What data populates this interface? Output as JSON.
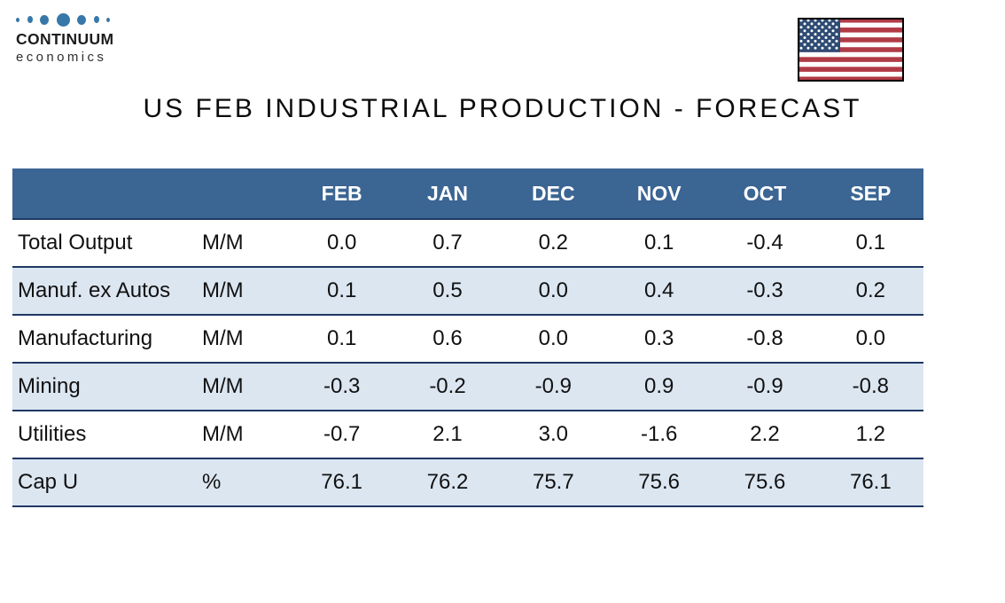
{
  "logo": {
    "line1": "CONTINUUM",
    "line2": "economics",
    "dot_color": "#3878A8"
  },
  "flag": {
    "name": "united-states-flag",
    "stripe_red": "#B03A45",
    "canton_blue": "#2E4B74",
    "star_white": "#FFFFFF",
    "border_black": "#000000"
  },
  "title": "US FEB INDUSTRIAL PRODUCTION - FORECAST",
  "table": {
    "header_bg": "#3B6593",
    "alt_row_bg": "#DCE6F1",
    "divider_color": "#1F3864",
    "columns": [
      "",
      "",
      "FEB",
      "JAN",
      "DEC",
      "NOV",
      "OCT",
      "SEP"
    ],
    "rows": [
      {
        "label": "Total Output",
        "unit": "M/M",
        "values": [
          "0.0",
          "0.7",
          "0.2",
          "0.1",
          "-0.4",
          "0.1"
        ]
      },
      {
        "label": "Manuf. ex Autos",
        "unit": "M/M",
        "values": [
          "0.1",
          "0.5",
          "0.0",
          "0.4",
          "-0.3",
          "0.2"
        ]
      },
      {
        "label": "Manufacturing",
        "unit": "M/M",
        "values": [
          "0.1",
          "0.6",
          "0.0",
          "0.3",
          "-0.8",
          "0.0"
        ]
      },
      {
        "label": "Mining",
        "unit": "M/M",
        "values": [
          "-0.3",
          "-0.2",
          "-0.9",
          "0.9",
          "-0.9",
          "-0.8"
        ]
      },
      {
        "label": "Utilities",
        "unit": "M/M",
        "values": [
          "-0.7",
          "2.1",
          "3.0",
          "-1.6",
          "2.2",
          "1.2"
        ]
      },
      {
        "label": "Cap U",
        "unit": "%",
        "values": [
          "76.1",
          "76.2",
          "75.7",
          "75.6",
          "75.6",
          "76.1"
        ]
      }
    ]
  },
  "chart_data": {
    "type": "table",
    "title": "US FEB INDUSTRIAL PRODUCTION - FORECAST",
    "categories": [
      "FEB",
      "JAN",
      "DEC",
      "NOV",
      "OCT",
      "SEP"
    ],
    "series": [
      {
        "name": "Total Output",
        "unit": "M/M",
        "values": [
          0.0,
          0.7,
          0.2,
          0.1,
          -0.4,
          0.1
        ]
      },
      {
        "name": "Manuf. ex Autos",
        "unit": "M/M",
        "values": [
          0.1,
          0.5,
          0.0,
          0.4,
          -0.3,
          0.2
        ]
      },
      {
        "name": "Manufacturing",
        "unit": "M/M",
        "values": [
          0.1,
          0.6,
          0.0,
          0.3,
          -0.8,
          0.0
        ]
      },
      {
        "name": "Mining",
        "unit": "M/M",
        "values": [
          -0.3,
          -0.2,
          -0.9,
          0.9,
          -0.9,
          -0.8
        ]
      },
      {
        "name": "Utilities",
        "unit": "M/M",
        "values": [
          -0.7,
          2.1,
          3.0,
          -1.6,
          2.2,
          1.2
        ]
      },
      {
        "name": "Cap U",
        "unit": "%",
        "values": [
          76.1,
          76.2,
          75.7,
          75.6,
          75.6,
          76.1
        ]
      }
    ]
  }
}
